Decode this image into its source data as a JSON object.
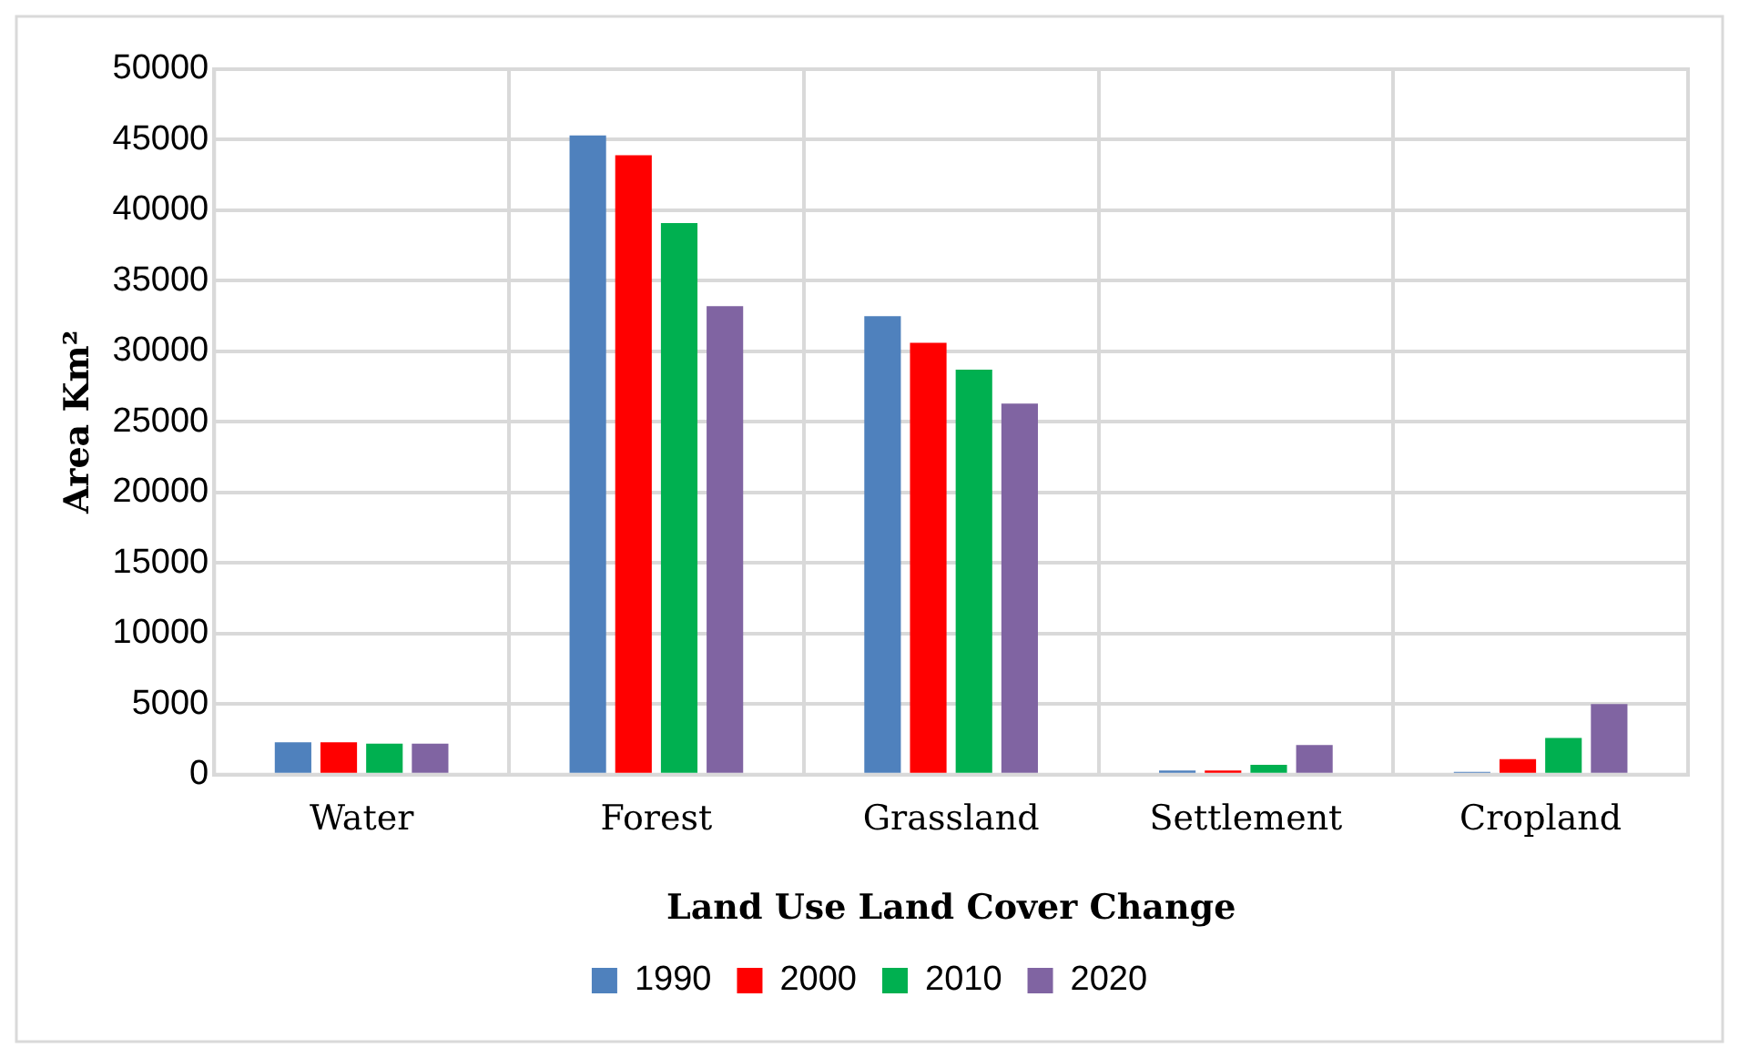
{
  "chart_data": {
    "type": "bar",
    "xlabel": "Land Use Land Cover Change",
    "ylabel": "Area Km²",
    "categories": [
      "Water",
      "Forest",
      "Grassland",
      "Settlement",
      "Cropland"
    ],
    "series": [
      {
        "name": "1990",
        "color": "#4f81bd",
        "values": [
          2300,
          45300,
          32500,
          300,
          200
        ]
      },
      {
        "name": "2000",
        "color": "#ff0000",
        "values": [
          2300,
          43900,
          30600,
          300,
          1100
        ]
      },
      {
        "name": "2010",
        "color": "#00b050",
        "values": [
          2200,
          39100,
          28700,
          700,
          2600
        ]
      },
      {
        "name": "2020",
        "color": "#8064a2",
        "values": [
          2200,
          33200,
          26300,
          2100,
          5000
        ]
      }
    ],
    "ylim": [
      0,
      50000
    ],
    "yticks": [
      0,
      5000,
      10000,
      15000,
      20000,
      25000,
      30000,
      35000,
      40000,
      45000,
      50000
    ],
    "grid": true,
    "legend": "bottom"
  }
}
